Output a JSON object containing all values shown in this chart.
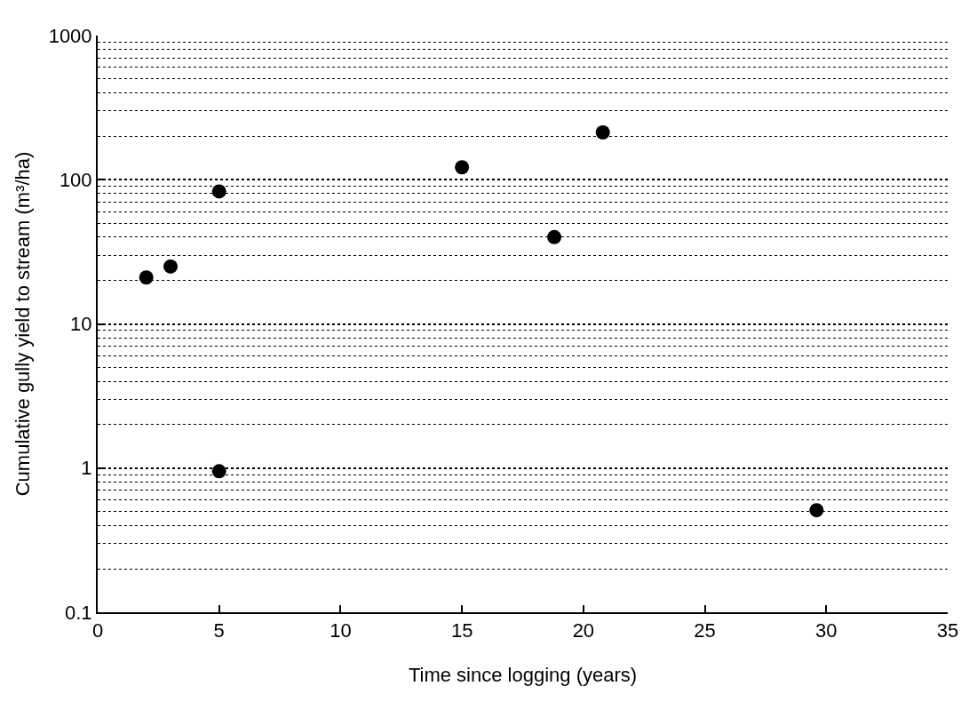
{
  "chart_data": {
    "type": "scatter",
    "xlabel": "Time since logging (years)",
    "ylabel": "Cumulative gully yield to stream (m³/ha)",
    "x": [
      2,
      3,
      5,
      5,
      15,
      18.8,
      20.8,
      29.6
    ],
    "values": [
      21,
      25,
      83,
      0.95,
      122,
      40,
      213,
      0.51
    ],
    "color": "#000000",
    "marker": "circle",
    "log": "y",
    "grid": "y",
    "xlim": [
      0,
      35
    ],
    "xticks": [
      0,
      5,
      10,
      15,
      20,
      25,
      30,
      35
    ],
    "ylim": [
      0.1,
      1000
    ],
    "yticks": [
      0.1,
      1,
      10,
      100,
      1000
    ]
  }
}
